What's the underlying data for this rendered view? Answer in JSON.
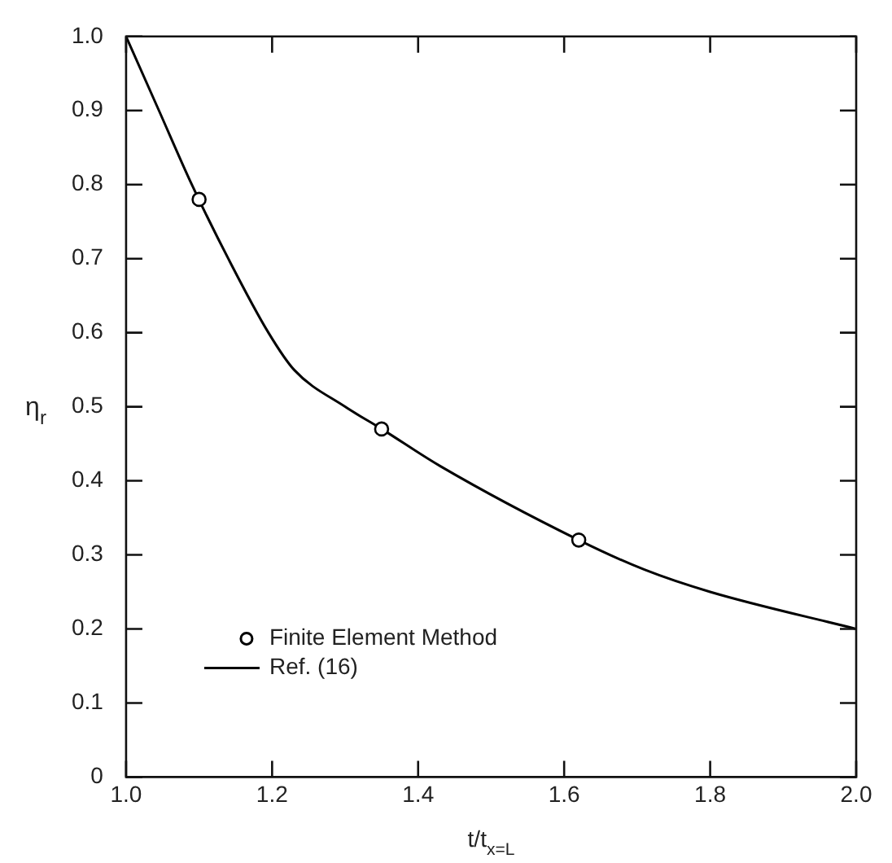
{
  "chart_data": {
    "type": "line",
    "xlabel": "t/t$_{x=L}$",
    "ylabel": "η$_{r}$",
    "xlim": [
      1.0,
      2.0
    ],
    "xticks": [
      {
        "value": 1,
        "label": "1.0"
      },
      1.2,
      1.4,
      1.6,
      1.8,
      {
        "value": 2,
        "label": "2.0"
      }
    ],
    "ylim": [
      0,
      1.0
    ],
    "yticks": [
      0,
      0.1,
      0.2,
      0.3,
      0.4,
      0.5,
      0.6,
      0.7,
      0.8,
      0.9,
      {
        "value": 1,
        "label": "1.0"
      }
    ],
    "grid": false,
    "legend": "bottom left",
    "series": [
      {
        "name": "Finite Element Method",
        "type": "scatter",
        "marker": "circle",
        "color": "#000000",
        "x": [
          1.1,
          1.35,
          1.62
        ],
        "values": [
          0.78,
          0.47,
          0.32
        ]
      },
      {
        "name": "Ref. (16)",
        "type": "line",
        "marker": "none",
        "line_style": "solid",
        "color": "#000000",
        "x": [
          1.0,
          1.045,
          1.09,
          1.14,
          1.195,
          1.23,
          1.3,
          1.35,
          1.43,
          1.62,
          1.71,
          1.8,
          2.0
        ],
        "values": [
          1.0,
          0.9,
          0.8,
          0.7,
          0.6,
          0.55,
          0.5,
          0.47,
          0.42,
          0.32,
          0.28,
          0.25,
          0.2
        ]
      }
    ]
  }
}
